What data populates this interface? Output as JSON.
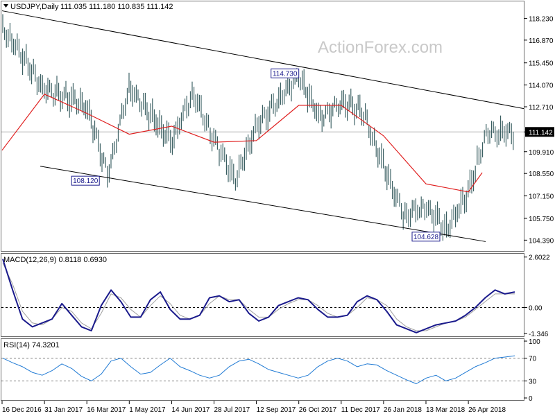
{
  "watermark": "ActionForex.com",
  "header": {
    "symbol": "USDJPY,Daily",
    "ohlc": "111.035 111.180 110.835 111.142"
  },
  "chart_data": [
    {
      "type": "candlestick",
      "title": "USDJPY,Daily",
      "ylim": [
        103.8,
        119.2
      ],
      "y_ticks": [
        "118.230",
        "116.870",
        "115.450",
        "114.070",
        "112.710",
        "111.142",
        "109.910",
        "108.550",
        "107.150",
        "105.750",
        "104.390"
      ],
      "last_price": "111.142",
      "x_ticks": [
        "16 Dec 2016",
        "31 Jan 2017",
        "16 Mar 2017",
        "1 May 2017",
        "14 Jun 2017",
        "28 Jul 2017",
        "12 Sep 2017",
        "26 Oct 2017",
        "11 Dec 2017",
        "26 Jan 2018",
        "13 Mar 2018",
        "26 Apr 2018"
      ],
      "annotations": [
        {
          "label": "114.730",
          "x": "26 Oct 2017",
          "y": 114.73
        },
        {
          "label": "108.120",
          "x": "16 Mar 2017",
          "y": 108.12
        },
        {
          "label": "104.628",
          "x": "13 Mar 2018",
          "y": 104.63
        }
      ],
      "channel": {
        "upper": [
          {
            "x": "16 Dec 2016",
            "y": 118.7
          },
          {
            "x": "26 Apr 2018",
            "y": 112.6
          }
        ],
        "lower": [
          {
            "x": "16 Dec 2016",
            "y": 109.0
          },
          {
            "x": "26 Apr 2018",
            "y": 104.3
          }
        ]
      },
      "price_series": [
        {
          "x": "16 Dec 2016",
          "y": 117.7
        },
        {
          "x": "31 Jan 2017",
          "y": 113.8
        },
        {
          "x": "16 Mar 2017",
          "y": 112.8
        },
        {
          "x": "16 Mar 2017",
          "y": 108.4
        },
        {
          "x": "1 May 2017",
          "y": 114.0
        },
        {
          "x": "14 Jun 2017",
          "y": 110.5
        },
        {
          "x": "14 Jun 2017",
          "y": 113.6
        },
        {
          "x": "28 Jul 2017",
          "y": 110.6
        },
        {
          "x": "28 Jul 2017",
          "y": 108.2
        },
        {
          "x": "12 Sep 2017",
          "y": 111.5
        },
        {
          "x": "26 Oct 2017",
          "y": 114.6
        },
        {
          "x": "26 Oct 2017",
          "y": 112.0
        },
        {
          "x": "11 Dec 2017",
          "y": 113.0
        },
        {
          "x": "11 Dec 2017",
          "y": 112.5
        },
        {
          "x": "26 Jan 2018",
          "y": 109.0
        },
        {
          "x": "26 Jan 2018",
          "y": 105.9
        },
        {
          "x": "13 Mar 2018",
          "y": 106.5
        },
        {
          "x": "13 Mar 2018",
          "y": 105.0
        },
        {
          "x": "26 Apr 2018",
          "y": 107.4
        },
        {
          "x": "26 Apr 2018",
          "y": 109.2
        },
        {
          "x": "26 Apr 2018",
          "y": 111.1
        }
      ],
      "moving_average": [
        {
          "x": "16 Dec 2016",
          "y": 110.0
        },
        {
          "x": "31 Jan 2017",
          "y": 113.5
        },
        {
          "x": "16 Mar 2017",
          "y": 112.3
        },
        {
          "x": "1 May 2017",
          "y": 111.0
        },
        {
          "x": "14 Jun 2017",
          "y": 111.5
        },
        {
          "x": "28 Jul 2017",
          "y": 110.5
        },
        {
          "x": "12 Sep 2017",
          "y": 110.6
        },
        {
          "x": "26 Oct 2017",
          "y": 112.8
        },
        {
          "x": "11 Dec 2017",
          "y": 112.8
        },
        {
          "x": "26 Jan 2018",
          "y": 110.9
        },
        {
          "x": "13 Mar 2018",
          "y": 107.9
        },
        {
          "x": "26 Apr 2018",
          "y": 107.4
        },
        {
          "x": "26 Apr 2018",
          "y": 108.6
        }
      ],
      "colors": {
        "candles": "#2f5559",
        "moving_average": "#e02020",
        "channel": "#000000",
        "grid": "#b0b0b0"
      }
    },
    {
      "type": "line",
      "title": "MACD(12,26,9) 0.8118 0.6930",
      "ylim": [
        -1.45,
        2.7
      ],
      "y_ticks": [
        "2.6022",
        "0.00",
        "-1.346"
      ],
      "zero_line": 0,
      "series": [
        {
          "values": [
            2.5,
            0.9,
            -0.6,
            -1.0,
            -0.8,
            -0.6,
            0.2,
            -0.4,
            -1.0,
            -1.2,
            0.1,
            0.9,
            0.3,
            -0.5,
            -0.5,
            0.4,
            0.8,
            -0.1,
            -0.6,
            -0.6,
            -0.4,
            0.5,
            0.6,
            0.3,
            0.4,
            -0.3,
            -0.7,
            -0.5,
            0.1,
            0.3,
            0.5,
            0.4,
            -0.1,
            -0.5,
            -0.5,
            -0.4,
            0.3,
            0.6,
            0.4,
            -0.2,
            -0.9,
            -1.1,
            -1.3,
            -1.1,
            -0.9,
            -0.8,
            -0.7,
            -0.4,
            0.0,
            0.5,
            0.9,
            0.7,
            0.8
          ]
        },
        {
          "values": [
            2.3,
            1.2,
            -0.2,
            -0.8,
            -0.9,
            -0.6,
            0.0,
            -0.2,
            -0.8,
            -1.1,
            -0.3,
            0.7,
            0.5,
            -0.1,
            -0.5,
            0.1,
            0.6,
            0.2,
            -0.4,
            -0.6,
            -0.4,
            0.2,
            0.6,
            0.4,
            0.4,
            -0.1,
            -0.5,
            -0.5,
            -0.1,
            0.2,
            0.4,
            0.4,
            0.1,
            -0.3,
            -0.5,
            -0.4,
            0.0,
            0.5,
            0.4,
            0.1,
            -0.6,
            -1.0,
            -1.2,
            -1.2,
            -1.0,
            -0.8,
            -0.7,
            -0.5,
            -0.1,
            0.3,
            0.7,
            0.7,
            0.7
          ]
        }
      ],
      "colors": {
        "macd": "#1a1a8c",
        "signal": "#a0a0a0",
        "zero": "#000000"
      }
    },
    {
      "type": "line",
      "title": "RSI(14) 74.3201",
      "ylim": [
        0,
        100
      ],
      "y_ticks": [
        "100",
        "70",
        "30",
        "0"
      ],
      "levels": [
        70,
        30
      ],
      "series": [
        {
          "values": [
            70,
            62,
            55,
            45,
            40,
            48,
            60,
            52,
            38,
            30,
            42,
            65,
            70,
            55,
            42,
            45,
            58,
            70,
            55,
            48,
            40,
            35,
            40,
            55,
            65,
            68,
            60,
            50,
            45,
            40,
            35,
            40,
            55,
            65,
            70,
            65,
            55,
            60,
            58,
            48,
            40,
            32,
            25,
            35,
            40,
            30,
            35,
            45,
            55,
            62,
            70,
            72,
            74.3
          ]
        }
      ],
      "colors": {
        "rsi": "#1f7ad4",
        "levels": "#808080"
      }
    }
  ]
}
